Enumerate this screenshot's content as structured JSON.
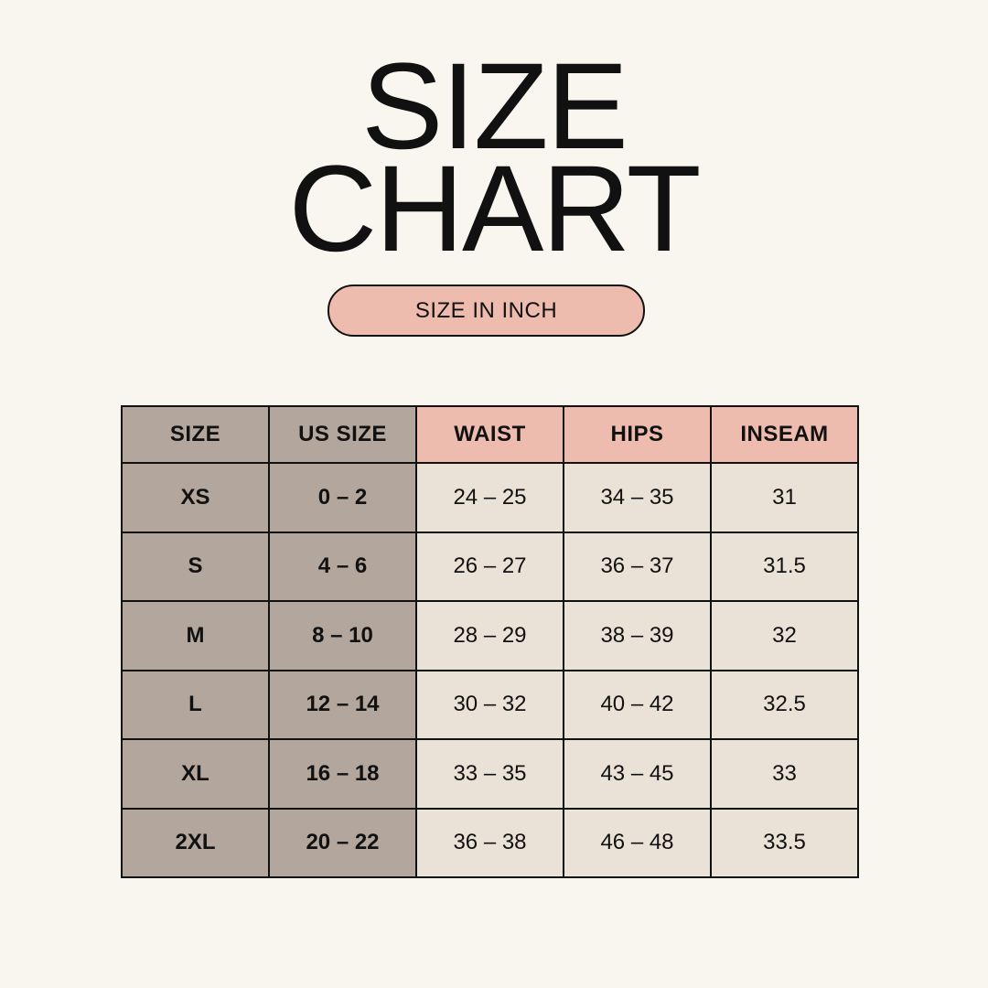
{
  "title": {
    "line1": "SIZE",
    "line2": "CHART"
  },
  "unit_label": "SIZE IN INCH",
  "colors": {
    "background": "#f9f6ef",
    "size_columns": "#b3a69d",
    "header_accent": "#eebcae",
    "measure_cells": "#ebe2d7"
  },
  "table": {
    "headers": [
      "SIZE",
      "US SIZE",
      "WAIST",
      "HIPS",
      "INSEAM"
    ],
    "rows": [
      [
        "XS",
        "0 – 2",
        "24 – 25",
        "34 – 35",
        "31"
      ],
      [
        "S",
        "4 – 6",
        "26 – 27",
        "36 – 37",
        "31.5"
      ],
      [
        "M",
        "8 – 10",
        "28 – 29",
        "38 – 39",
        "32"
      ],
      [
        "L",
        "12 – 14",
        "30 – 32",
        "40 – 42",
        "32.5"
      ],
      [
        "XL",
        "16 – 18",
        "33 – 35",
        "43 – 45",
        "33"
      ],
      [
        "2XL",
        "20 – 22",
        "36 – 38",
        "46 – 48",
        "33.5"
      ]
    ]
  }
}
